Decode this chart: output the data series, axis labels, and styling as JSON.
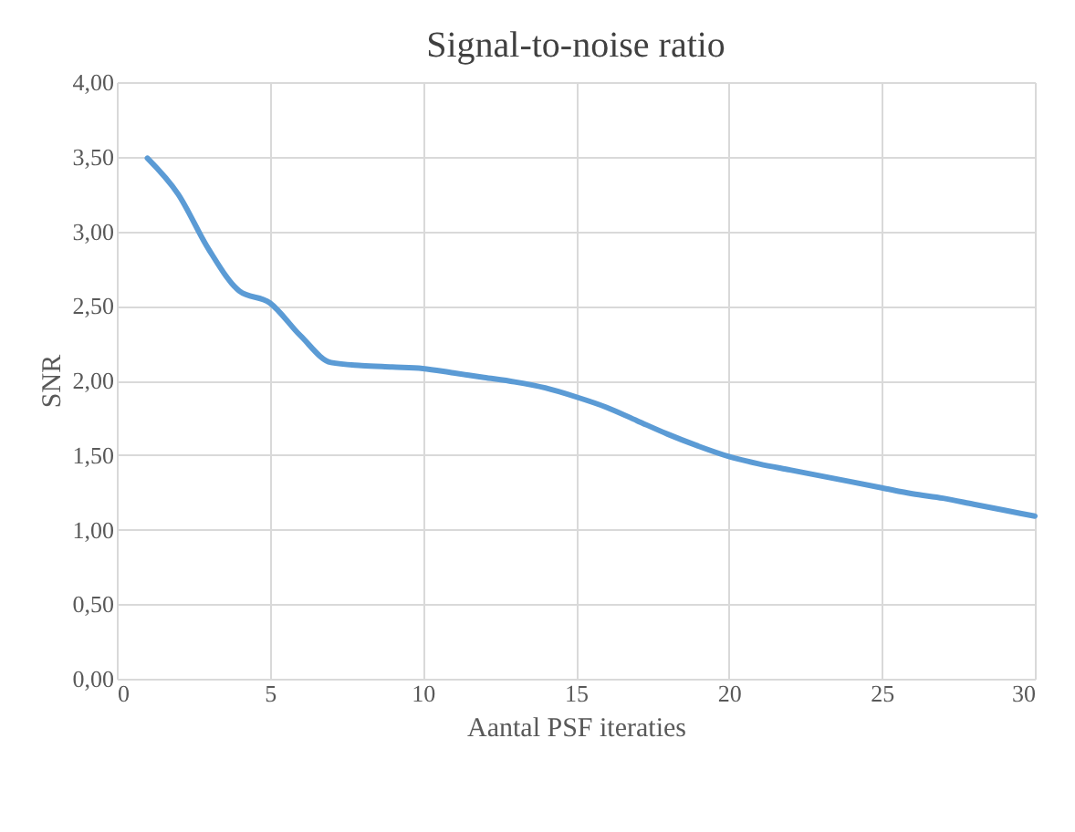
{
  "chart_data": {
    "type": "line",
    "title": "Signal-to-noise ratio",
    "xlabel": "Aantal PSF iteraties",
    "ylabel": "SNR",
    "x": [
      1,
      2,
      3,
      4,
      5,
      6,
      7,
      8,
      9,
      10,
      11,
      12,
      13,
      14,
      15,
      16,
      17,
      18,
      19,
      20,
      21,
      22,
      23,
      24,
      25,
      26,
      27,
      28,
      29,
      30
    ],
    "series": [
      {
        "color": "#5b9bd5",
        "values": [
          3.49,
          3.25,
          2.88,
          2.6,
          2.52,
          2.3,
          2.12,
          2.1,
          2.09,
          2.08,
          2.05,
          2.02,
          1.99,
          1.95,
          1.89,
          1.82,
          1.73,
          1.64,
          1.56,
          1.49,
          1.44,
          1.4,
          1.36,
          1.32,
          1.28,
          1.24,
          1.21,
          1.17,
          1.13,
          1.09
        ]
      }
    ],
    "xlim": [
      0,
      30
    ],
    "xticks": [
      0,
      5,
      10,
      15,
      20,
      25,
      30
    ],
    "ylim": [
      0,
      4
    ],
    "yticks": [
      {
        "value": 0,
        "label": "0,00"
      },
      {
        "value": 0.5,
        "label": "0,50"
      },
      {
        "value": 1,
        "label": "1,00"
      },
      {
        "value": 1.5,
        "label": "1,50"
      },
      {
        "value": 2,
        "label": "2,00"
      },
      {
        "value": 2.5,
        "label": "2,50"
      },
      {
        "value": 3,
        "label": "3,00"
      },
      {
        "value": 3.5,
        "label": "3,50"
      },
      {
        "value": 4,
        "label": "4,00"
      }
    ],
    "grid": true,
    "marker": "none",
    "line_style": "solid"
  }
}
